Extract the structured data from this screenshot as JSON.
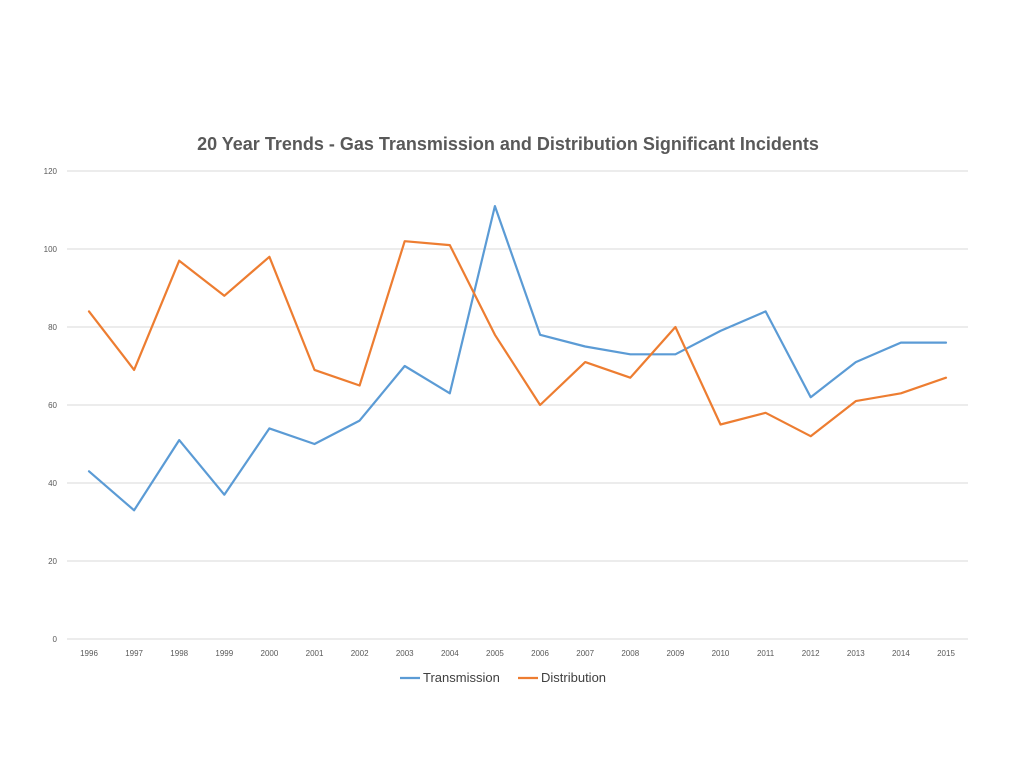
{
  "chart_data": {
    "type": "line",
    "title": "20 Year Trends - Gas Transmission and Distribution Significant Incidents",
    "xlabel": "",
    "ylabel": "",
    "x": [
      "1996",
      "1997",
      "1998",
      "1999",
      "2000",
      "2001",
      "2002",
      "2003",
      "2004",
      "2005",
      "2006",
      "2007",
      "2008",
      "2009",
      "2010",
      "2011",
      "2012",
      "2013",
      "2014",
      "2015"
    ],
    "ylim": [
      0,
      120
    ],
    "yticks": [
      0,
      20,
      40,
      60,
      80,
      100,
      120
    ],
    "grid": true,
    "legend_position": "bottom",
    "series": [
      {
        "name": "Transmission",
        "color": "#5b9bd5",
        "values": [
          43,
          33,
          51,
          37,
          54,
          50,
          56,
          70,
          63,
          111,
          78,
          75,
          73,
          73,
          79,
          84,
          62,
          71,
          76,
          76
        ]
      },
      {
        "name": "Distribution",
        "color": "#ed7d31",
        "values": [
          84,
          69,
          97,
          88,
          98,
          69,
          65,
          102,
          101,
          78,
          60,
          71,
          67,
          80,
          55,
          58,
          52,
          61,
          63,
          67
        ]
      }
    ]
  }
}
